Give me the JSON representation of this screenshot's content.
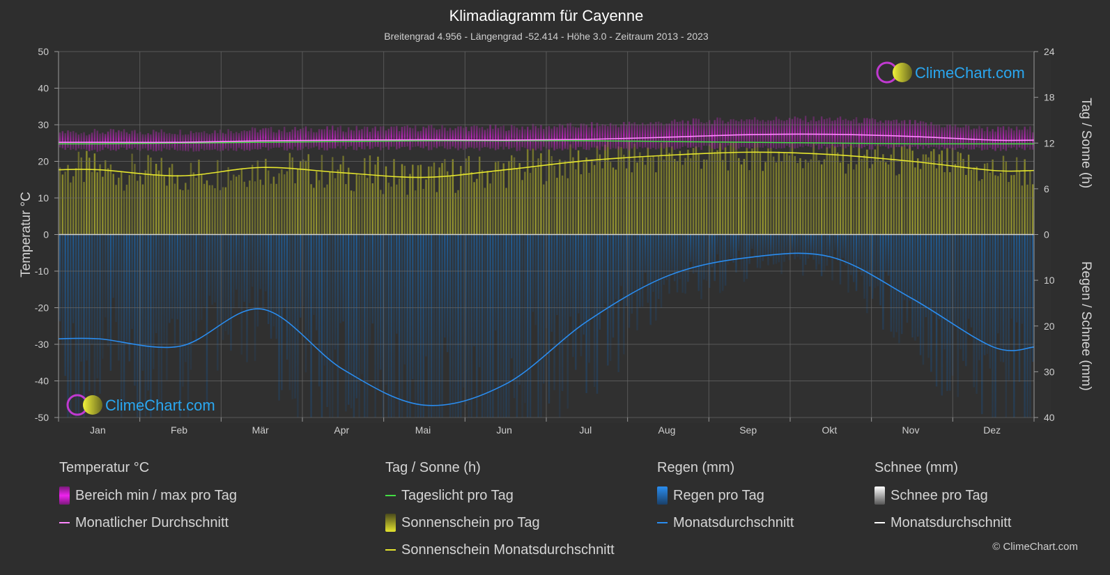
{
  "header": {
    "title": "Klimadiagramm für Cayenne",
    "subtitle": "Breitengrad 4.956 - Längengrad -52.414 - Höhe 3.0 - Zeitraum 2013 - 2023"
  },
  "brand": {
    "logo_text": "ClimeChart.com",
    "copyright": "© ClimeChart.com"
  },
  "colors": {
    "temp_range": "#d21fd2",
    "temp_avg": "#ff88ff",
    "daylight": "#44dd44",
    "sunshine_bar": "#bcbc2a",
    "sunshine_avg": "#e6e62e",
    "rain_bar": "#1f6fb8",
    "rain_avg": "#2a8df0",
    "snow_bar": "#dddddd",
    "snow_avg": "#ffffff"
  },
  "chart_data": {
    "type": "line",
    "months": [
      "Jan",
      "Feb",
      "Mär",
      "Apr",
      "Mai",
      "Jun",
      "Jul",
      "Aug",
      "Sep",
      "Okt",
      "Nov",
      "Dez"
    ],
    "axes": {
      "left": {
        "label": "Temperatur °C",
        "min": -50,
        "max": 50,
        "ticks": [
          "50",
          "40",
          "30",
          "20",
          "10",
          "0",
          "-10",
          "-20",
          "-30",
          "-40",
          "-50"
        ]
      },
      "right_top": {
        "label": "Tag / Sonne (h)",
        "min": 0,
        "max": 24,
        "ticks": [
          "24",
          "18",
          "12",
          "6",
          "0"
        ]
      },
      "right_bottom": {
        "label": "Regen / Schnee (mm)",
        "min": 0,
        "max": 40,
        "ticks": [
          "10",
          "20",
          "30",
          "40"
        ]
      }
    },
    "grid": true,
    "series": [
      {
        "name": "Bereich min / max pro Tag",
        "axis": "temperature",
        "min": [
          23.2,
          23.2,
          23.4,
          23.6,
          23.6,
          23.4,
          23.4,
          23.6,
          23.8,
          23.8,
          23.6,
          23.3
        ],
        "max": [
          28.0,
          28.1,
          28.6,
          28.9,
          29.1,
          29.2,
          29.8,
          30.6,
          31.5,
          31.6,
          30.5,
          28.8
        ]
      },
      {
        "name": "Monatlicher Durchschnitt",
        "axis": "temperature",
        "values": [
          25.2,
          25.2,
          25.6,
          25.8,
          25.9,
          25.8,
          26.0,
          26.6,
          27.3,
          27.4,
          26.8,
          25.8
        ]
      },
      {
        "name": "Tageslicht pro Tag",
        "axis": "daylight_hours",
        "values": [
          11.9,
          12.0,
          12.1,
          12.2,
          12.3,
          12.3,
          12.3,
          12.2,
          12.1,
          12.0,
          11.9,
          11.9
        ]
      },
      {
        "name": "Sonnenschein Monatsdurchschnitt",
        "axis": "daylight_hours",
        "values": [
          8.5,
          7.7,
          8.8,
          8.1,
          7.5,
          8.5,
          9.7,
          10.4,
          10.8,
          10.5,
          9.6,
          8.4
        ]
      },
      {
        "name": "Monatsdurchschnitt",
        "axis": "precipitation_mm",
        "values": [
          22.8,
          24.4,
          16.3,
          29.5,
          37.3,
          32.7,
          19.0,
          9.0,
          5.0,
          4.9,
          14.0,
          24.6
        ]
      },
      {
        "name": "Monatsdurchschnitt",
        "axis": "snow_mm",
        "values": [
          0,
          0,
          0,
          0,
          0,
          0,
          0,
          0,
          0,
          0,
          0,
          0
        ]
      }
    ]
  },
  "legend": {
    "temperature": {
      "heading": "Temperatur °C",
      "items": [
        "Bereich min / max pro Tag",
        "Monatlicher Durchschnitt"
      ]
    },
    "daysun": {
      "heading": "Tag / Sonne (h)",
      "items": [
        "Tageslicht pro Tag",
        "Sonnenschein pro Tag",
        "Sonnenschein Monatsdurchschnitt"
      ]
    },
    "rain": {
      "heading": "Regen (mm)",
      "items": [
        "Regen pro Tag",
        "Monatsdurchschnitt"
      ]
    },
    "snow": {
      "heading": "Schnee (mm)",
      "items": [
        "Schnee pro Tag",
        "Monatsdurchschnitt"
      ]
    }
  }
}
